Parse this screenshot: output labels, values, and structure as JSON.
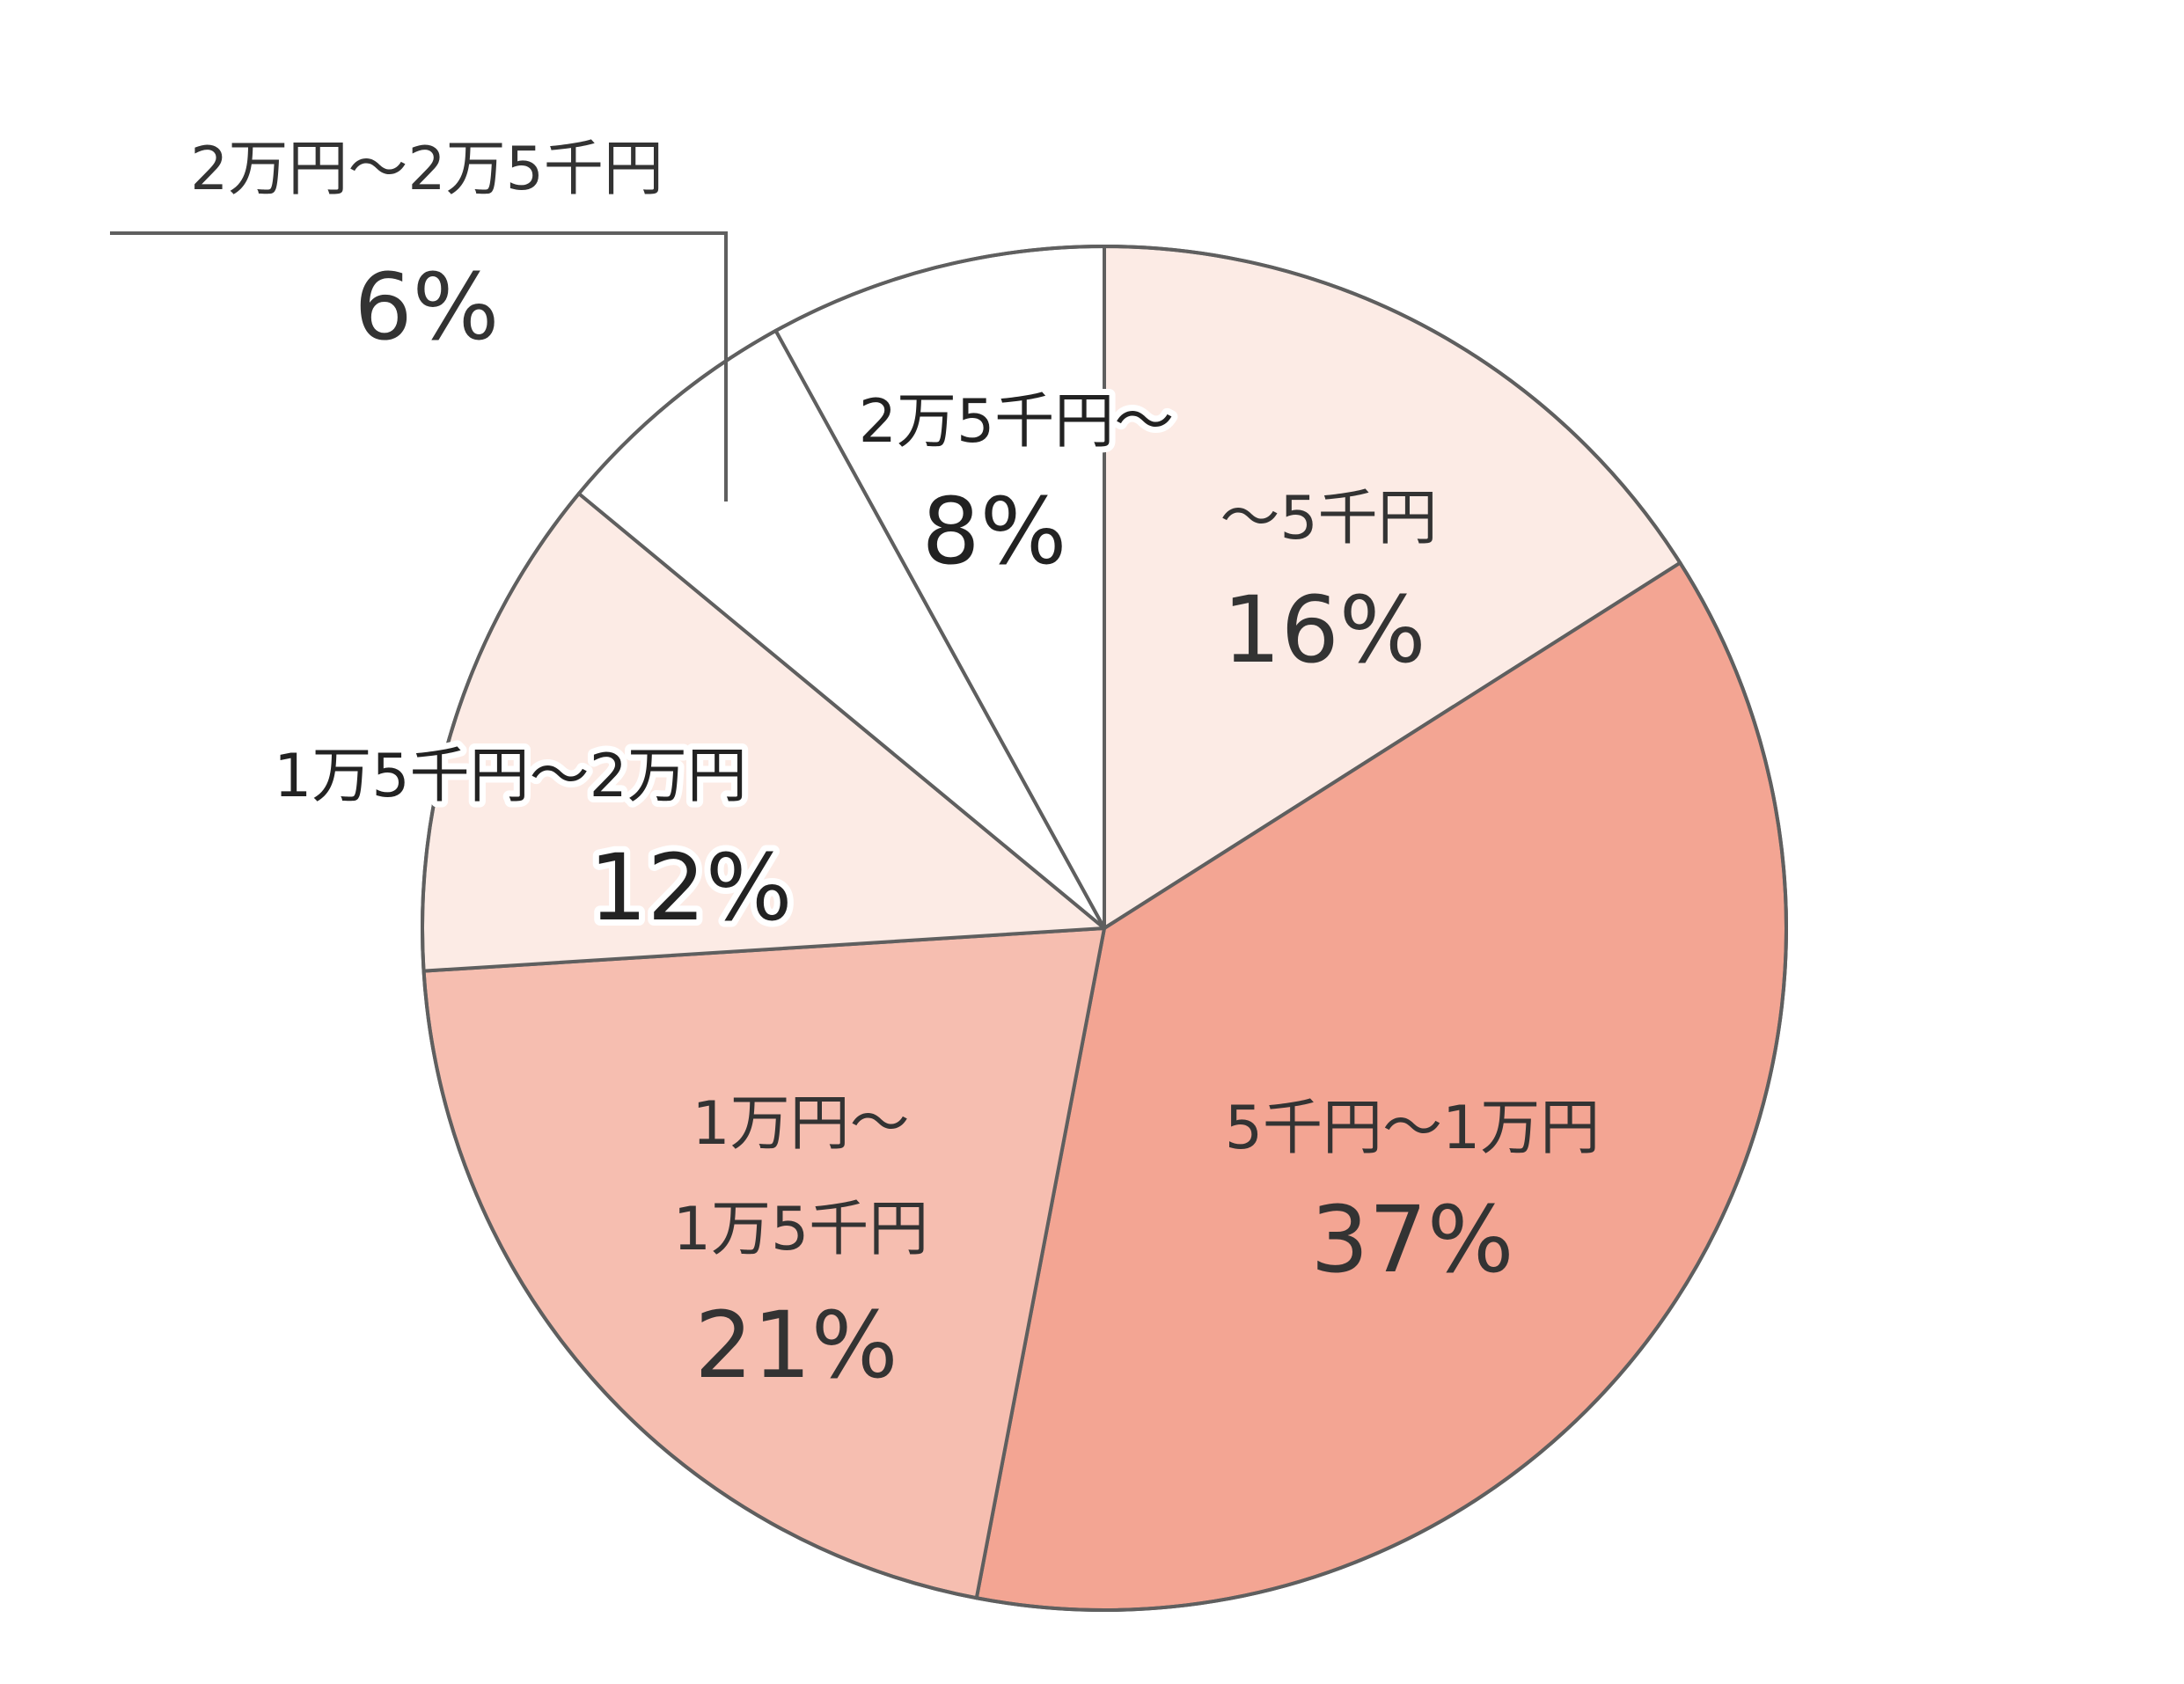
{
  "chart_data": {
    "type": "pie",
    "start_angle_deg": 0,
    "direction": "clockwise",
    "legend": "none",
    "slices": [
      {
        "label": "～5千円",
        "value": 16,
        "value_label": "16%",
        "color": "#fcebe5"
      },
      {
        "label": "5千円～1万円",
        "value": 37,
        "value_label": "37%",
        "color": "#f3a593"
      },
      {
        "label": "1万円～1万5千円",
        "value": 21,
        "value_label": "21%",
        "color": "#f6beb0"
      },
      {
        "label": "1万5千円～2万円",
        "value": 12,
        "value_label": "12%",
        "color": "#fcebe5"
      },
      {
        "label": "2万円～2万5千円",
        "value": 6,
        "value_label": "6%",
        "color": "#ffffff"
      },
      {
        "label": "2万5千円～",
        "value": 8,
        "value_label": "8%",
        "color": "#ffffff"
      }
    ]
  }
}
